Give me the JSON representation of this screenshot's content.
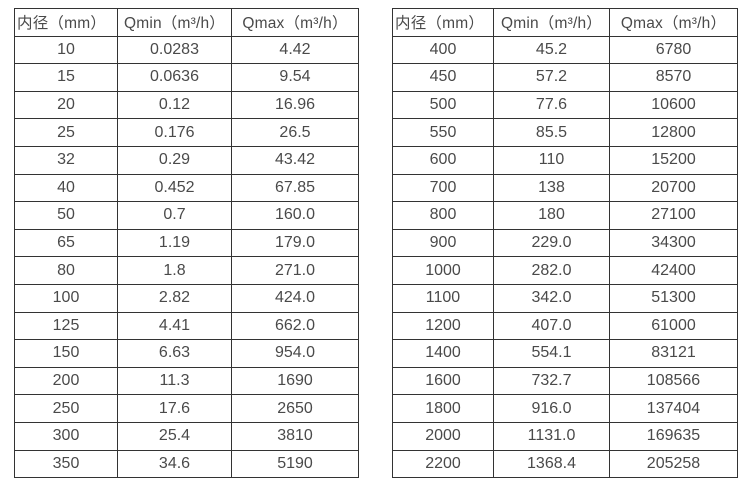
{
  "colors": {
    "background": "#ffffff",
    "text": "#4a4a4a",
    "border": "#333333"
  },
  "tables": [
    {
      "name": "flow-spec-table-small-diameters",
      "headers": [
        "内径（mm）",
        "Qmin（m³/h）",
        "Qmax（m³/h）"
      ],
      "rows": [
        [
          "10",
          "0.0283",
          "4.42"
        ],
        [
          "15",
          "0.0636",
          "9.54"
        ],
        [
          "20",
          "0.12",
          "16.96"
        ],
        [
          "25",
          "0.176",
          "26.5"
        ],
        [
          "32",
          "0.29",
          "43.42"
        ],
        [
          "40",
          "0.452",
          "67.85"
        ],
        [
          "50",
          "0.7",
          "160.0"
        ],
        [
          "65",
          "1.19",
          "179.0"
        ],
        [
          "80",
          "1.8",
          "271.0"
        ],
        [
          "100",
          "2.82",
          "424.0"
        ],
        [
          "125",
          "4.41",
          "662.0"
        ],
        [
          "150",
          "6.63",
          "954.0"
        ],
        [
          "200",
          "11.3",
          "1690"
        ],
        [
          "250",
          "17.6",
          "2650"
        ],
        [
          "300",
          "25.4",
          "3810"
        ],
        [
          "350",
          "34.6",
          "5190"
        ]
      ]
    },
    {
      "name": "flow-spec-table-large-diameters",
      "headers": [
        "内径（mm）",
        "Qmin（m³/h）",
        "Qmax（m³/h）"
      ],
      "rows": [
        [
          "400",
          "45.2",
          "6780"
        ],
        [
          "450",
          "57.2",
          "8570"
        ],
        [
          "500",
          "77.6",
          "10600"
        ],
        [
          "550",
          "85.5",
          "12800"
        ],
        [
          "600",
          "110",
          "15200"
        ],
        [
          "700",
          "138",
          "20700"
        ],
        [
          "800",
          "180",
          "27100"
        ],
        [
          "900",
          "229.0",
          "34300"
        ],
        [
          "1000",
          "282.0",
          "42400"
        ],
        [
          "1100",
          "342.0",
          "51300"
        ],
        [
          "1200",
          "407.0",
          "61000"
        ],
        [
          "1400",
          "554.1",
          "83121"
        ],
        [
          "1600",
          "732.7",
          "108566"
        ],
        [
          "1800",
          "916.0",
          "137404"
        ],
        [
          "2000",
          "1131.0",
          "169635"
        ],
        [
          "2200",
          "1368.4",
          "205258"
        ]
      ]
    }
  ]
}
